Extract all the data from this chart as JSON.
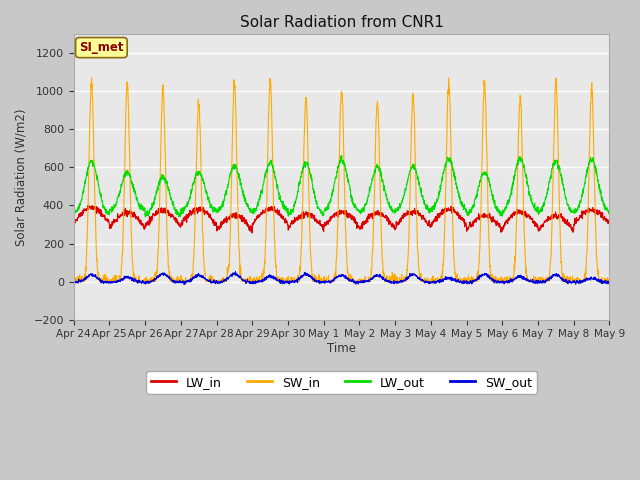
{
  "title": "Solar Radiation from CNR1",
  "ylabel": "Solar Radiation (W/m2)",
  "xlabel": "Time",
  "annotation": "SI_met",
  "ylim": [
    -200,
    1300
  ],
  "yticks": [
    -200,
    0,
    200,
    400,
    600,
    800,
    1000,
    1200
  ],
  "x_labels": [
    "Apr 24",
    "Apr 25",
    "Apr 26",
    "Apr 27",
    "Apr 28",
    "Apr 29",
    "Apr 30",
    "May 1",
    "May 2",
    "May 3",
    "May 4",
    "May 5",
    "May 6",
    "May 7",
    "May 8",
    "May 9"
  ],
  "fig_bg_color": "#c8c8c8",
  "plot_bg_color": "#e8e8e8",
  "grid_color": "#ffffff",
  "line_colors": {
    "LW_in": "#dd0000",
    "SW_in": "#ffaa00",
    "LW_out": "#00dd00",
    "SW_out": "#0000dd"
  },
  "n_days": 15,
  "points_per_day": 144
}
